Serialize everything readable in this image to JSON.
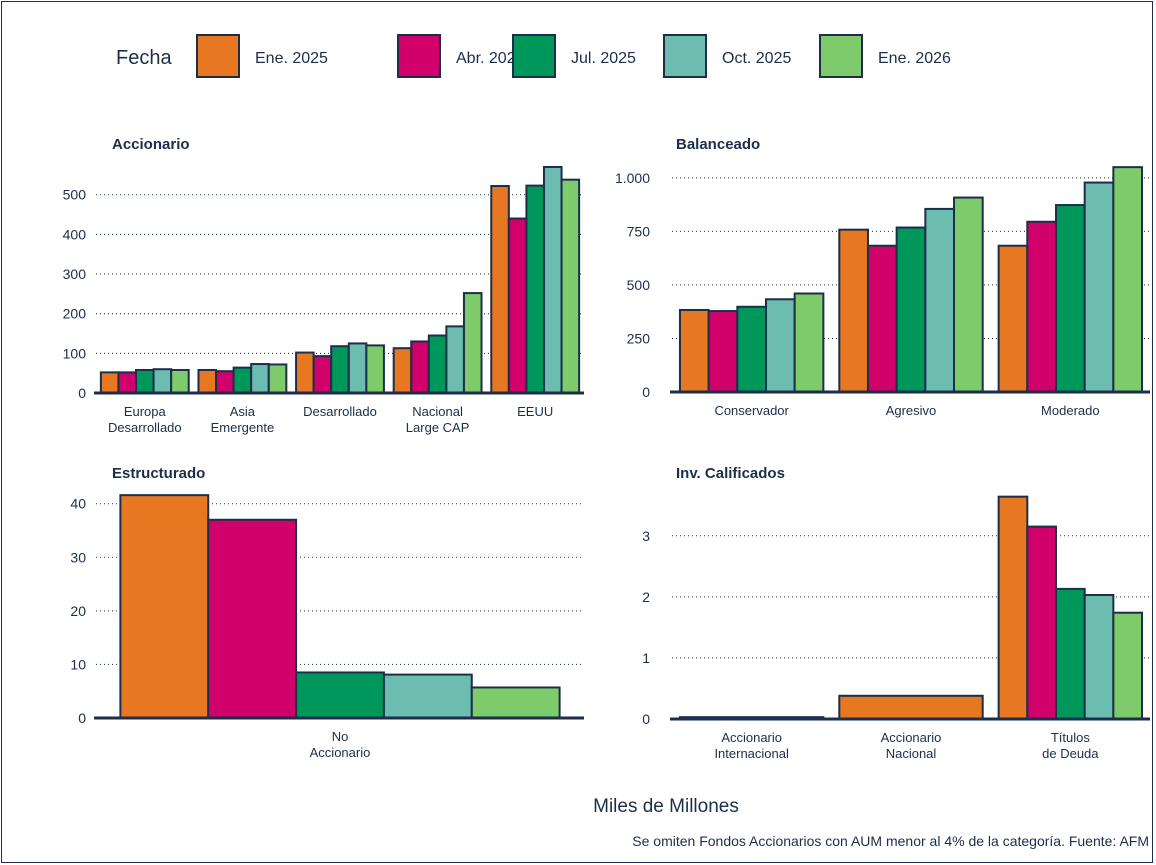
{
  "legend": {
    "title": "Fecha",
    "entries": [
      {
        "label": "Ene. 2025",
        "color": "#e87722"
      },
      {
        "label": "Abr. 2025",
        "color": "#d1006a"
      },
      {
        "label": "Jul. 2025",
        "color": "#00975a"
      },
      {
        "label": "Oct. 2025",
        "color": "#6cbcb0"
      },
      {
        "label": "Ene. 2026",
        "color": "#7dcb6a"
      }
    ]
  },
  "axis_caption": "Miles de Millones",
  "footnote": "Se omiten Fondos Accionarios con AUM menor al 4% de la categoría. Fuente: AFM",
  "chart_data": [
    {
      "type": "bar",
      "title": "Accionario",
      "categories": [
        "Europa\nDesarrollado",
        "Asia\nEmergente",
        "Desarrollado",
        "Nacional\nLarge CAP",
        "EEUU"
      ],
      "yticks": [
        0,
        100,
        200,
        300,
        400,
        500
      ],
      "ytick_labels": [
        "0",
        "100",
        "200",
        "300",
        "400",
        "500"
      ],
      "ylim": [
        0,
        575
      ],
      "grid": true,
      "series": [
        {
          "name": "Ene. 2025",
          "values": [
            52,
            58,
            102,
            113,
            522
          ]
        },
        {
          "name": "Abr. 2025",
          "values": [
            52,
            55,
            93,
            130,
            440
          ]
        },
        {
          "name": "Jul. 2025",
          "values": [
            58,
            64,
            118,
            145,
            523
          ]
        },
        {
          "name": "Oct. 2025",
          "values": [
            60,
            73,
            125,
            168,
            570
          ]
        },
        {
          "name": "Ene. 2026",
          "values": [
            58,
            72,
            120,
            252,
            538
          ]
        }
      ]
    },
    {
      "type": "bar",
      "title": "Balanceado",
      "categories": [
        "Conservador",
        "Agresivo",
        "Moderado"
      ],
      "yticks": [
        0,
        250,
        500,
        750,
        1000
      ],
      "ytick_labels": [
        "0",
        "250",
        "500",
        "750",
        "1.000"
      ],
      "ylim": [
        0,
        1060
      ],
      "grid": true,
      "series": [
        {
          "name": "Ene. 2025",
          "values": [
            383,
            758,
            683
          ]
        },
        {
          "name": "Abr. 2025",
          "values": [
            378,
            683,
            795
          ]
        },
        {
          "name": "Jul. 2025",
          "values": [
            398,
            768,
            873
          ]
        },
        {
          "name": "Oct. 2025",
          "values": [
            433,
            855,
            978
          ]
        },
        {
          "name": "Ene. 2026",
          "values": [
            460,
            908,
            1050
          ]
        }
      ]
    },
    {
      "type": "bar",
      "title": "Estructurado",
      "categories": [
        "No\nAccionario"
      ],
      "yticks": [
        0,
        10,
        20,
        30,
        40
      ],
      "ytick_labels": [
        "0",
        "10",
        "20",
        "30",
        "40"
      ],
      "ylim": [
        0,
        42
      ],
      "grid": true,
      "series": [
        {
          "name": "Ene. 2025",
          "values": [
            41.6
          ]
        },
        {
          "name": "Abr. 2025",
          "values": [
            37.0
          ]
        },
        {
          "name": "Jul. 2025",
          "values": [
            8.5
          ]
        },
        {
          "name": "Oct. 2025",
          "values": [
            8.1
          ]
        },
        {
          "name": "Ene. 2026",
          "values": [
            5.7
          ]
        }
      ]
    },
    {
      "type": "bar",
      "title": "Inv. Calificados",
      "categories": [
        "Accionario\nInternacional",
        "Accionario\nNacional",
        "Títulos\nde Deuda"
      ],
      "yticks": [
        0,
        1,
        2,
        3
      ],
      "ytick_labels": [
        "0",
        "1",
        "2",
        "3"
      ],
      "ylim": [
        0,
        3.7
      ],
      "grid": true,
      "series": [
        {
          "name": "Ene. 2025",
          "values": [
            0.03,
            0.38,
            3.64
          ]
        },
        {
          "name": "Abr. 2025",
          "values": [
            null,
            null,
            3.15
          ]
        },
        {
          "name": "Jul. 2025",
          "values": [
            null,
            null,
            2.13
          ]
        },
        {
          "name": "Oct. 2025",
          "values": [
            null,
            null,
            2.03
          ]
        },
        {
          "name": "Ene. 2026",
          "values": [
            null,
            null,
            1.74
          ]
        }
      ]
    }
  ]
}
